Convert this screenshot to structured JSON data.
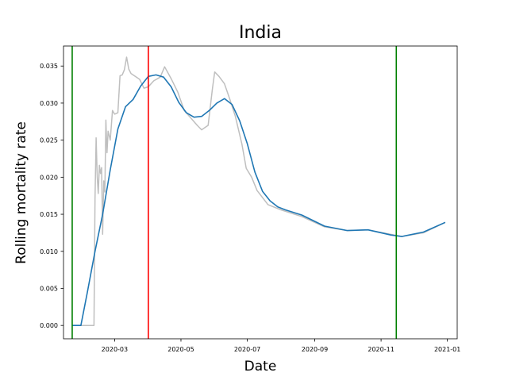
{
  "chart_data": {
    "type": "line",
    "title": "India",
    "xlabel": "Date",
    "ylabel": "Rolling mortality rate",
    "x_ticks": [
      "2020-03-01",
      "2020-05-01",
      "2020-07-01",
      "2020-09-01",
      "2020-11-01",
      "2021-01-01"
    ],
    "x_tick_labels": [
      "2020-03",
      "2020-05",
      "2020-07",
      "2020-09",
      "2020-11",
      "2021-01"
    ],
    "y_ticks": [
      0.0,
      0.005,
      0.01,
      0.015,
      0.02,
      0.025,
      0.03,
      0.035
    ],
    "y_tick_labels": [
      "0.000",
      "0.005",
      "0.010",
      "0.015",
      "0.020",
      "0.025",
      "0.030",
      "0.035"
    ],
    "xlim": [
      "2020-01-14",
      "2021-01-10"
    ],
    "ylim": [
      -0.0018,
      0.0377
    ],
    "grid": false,
    "series": [
      {
        "color": "#bfbfbf",
        "points": [
          [
            "2020-01-22",
            0.0
          ],
          [
            "2020-02-11",
            0.0
          ],
          [
            "2020-02-12",
            0.017
          ],
          [
            "2020-02-13",
            0.0253
          ],
          [
            "2020-02-14",
            0.02
          ],
          [
            "2020-02-15",
            0.0178
          ],
          [
            "2020-02-16",
            0.0216
          ],
          [
            "2020-02-17",
            0.0205
          ],
          [
            "2020-02-18",
            0.0213
          ],
          [
            "2020-02-19",
            0.0123
          ],
          [
            "2020-02-20",
            0.0195
          ],
          [
            "2020-02-21",
            0.018
          ],
          [
            "2020-02-22",
            0.0277
          ],
          [
            "2020-02-23",
            0.0233
          ],
          [
            "2020-02-24",
            0.0262
          ],
          [
            "2020-02-26",
            0.025
          ],
          [
            "2020-02-28",
            0.029
          ],
          [
            "2020-03-01",
            0.0285
          ],
          [
            "2020-03-04",
            0.0287
          ],
          [
            "2020-03-06",
            0.0337
          ],
          [
            "2020-03-08",
            0.0338
          ],
          [
            "2020-03-10",
            0.0345
          ],
          [
            "2020-03-12",
            0.0362
          ],
          [
            "2020-03-14",
            0.0346
          ],
          [
            "2020-03-16",
            0.034
          ],
          [
            "2020-03-20",
            0.0336
          ],
          [
            "2020-03-24",
            0.0332
          ],
          [
            "2020-03-28",
            0.032
          ],
          [
            "2020-04-01",
            0.0322
          ],
          [
            "2020-04-06",
            0.033
          ],
          [
            "2020-04-12",
            0.0335
          ],
          [
            "2020-04-16",
            0.0349
          ],
          [
            "2020-04-22",
            0.0333
          ],
          [
            "2020-04-28",
            0.0315
          ],
          [
            "2020-05-04",
            0.029
          ],
          [
            "2020-05-10",
            0.028
          ],
          [
            "2020-05-16",
            0.027
          ],
          [
            "2020-05-20",
            0.0264
          ],
          [
            "2020-05-26",
            0.027
          ],
          [
            "2020-05-30",
            0.032
          ],
          [
            "2020-06-01",
            0.0342
          ],
          [
            "2020-06-05",
            0.0336
          ],
          [
            "2020-06-10",
            0.0326
          ],
          [
            "2020-06-15",
            0.0305
          ],
          [
            "2020-06-20",
            0.0282
          ],
          [
            "2020-06-26",
            0.0245
          ],
          [
            "2020-06-30",
            0.0212
          ],
          [
            "2020-07-05",
            0.02
          ],
          [
            "2020-07-10",
            0.0182
          ],
          [
            "2020-07-20",
            0.0163
          ],
          [
            "2020-08-01",
            0.0156
          ],
          [
            "2020-08-20",
            0.0147
          ],
          [
            "2020-09-10",
            0.0133
          ],
          [
            "2020-10-01",
            0.0128
          ],
          [
            "2020-10-20",
            0.0129
          ],
          [
            "2020-11-10",
            0.0123
          ],
          [
            "2020-11-20",
            0.012
          ],
          [
            "2020-12-10",
            0.0125
          ],
          [
            "2020-12-30",
            0.0139
          ]
        ]
      },
      {
        "color": "#1f77b4",
        "points": [
          [
            "2020-01-22",
            0.0
          ],
          [
            "2020-01-30",
            0.0
          ],
          [
            "2020-02-05",
            0.0045
          ],
          [
            "2020-02-12",
            0.01
          ],
          [
            "2020-02-19",
            0.015
          ],
          [
            "2020-02-26",
            0.021
          ],
          [
            "2020-03-04",
            0.0265
          ],
          [
            "2020-03-11",
            0.0295
          ],
          [
            "2020-03-18",
            0.0305
          ],
          [
            "2020-03-25",
            0.0323
          ],
          [
            "2020-04-01",
            0.0336
          ],
          [
            "2020-04-08",
            0.0338
          ],
          [
            "2020-04-15",
            0.0335
          ],
          [
            "2020-04-22",
            0.0322
          ],
          [
            "2020-04-29",
            0.0301
          ],
          [
            "2020-05-06",
            0.0287
          ],
          [
            "2020-05-13",
            0.0281
          ],
          [
            "2020-05-20",
            0.0282
          ],
          [
            "2020-05-27",
            0.029
          ],
          [
            "2020-06-03",
            0.03
          ],
          [
            "2020-06-10",
            0.0306
          ],
          [
            "2020-06-17",
            0.0298
          ],
          [
            "2020-06-24",
            0.0276
          ],
          [
            "2020-07-01",
            0.0245
          ],
          [
            "2020-07-08",
            0.0207
          ],
          [
            "2020-07-15",
            0.0181
          ],
          [
            "2020-07-22",
            0.0168
          ],
          [
            "2020-07-29",
            0.016
          ],
          [
            "2020-08-05",
            0.0156
          ],
          [
            "2020-08-20",
            0.0149
          ],
          [
            "2020-09-10",
            0.0134
          ],
          [
            "2020-10-01",
            0.0128
          ],
          [
            "2020-10-20",
            0.0129
          ],
          [
            "2020-11-10",
            0.0122
          ],
          [
            "2020-11-20",
            0.012
          ],
          [
            "2020-12-10",
            0.0126
          ],
          [
            "2020-12-30",
            0.0139
          ]
        ]
      }
    ],
    "vlines": [
      {
        "x": "2020-01-22",
        "color": "#008000"
      },
      {
        "x": "2020-04-01",
        "color": "#ff0000"
      },
      {
        "x": "2020-11-15",
        "color": "#008000"
      }
    ]
  }
}
